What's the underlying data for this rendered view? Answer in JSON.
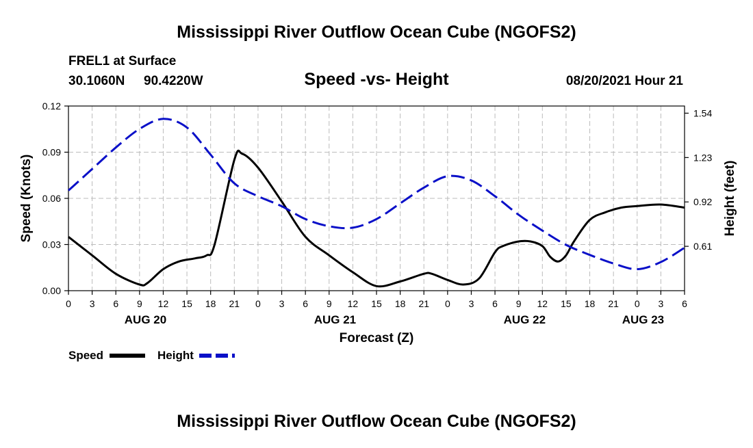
{
  "title": "Mississippi River Outflow Ocean Cube (NGOFS2)",
  "footer_title": "Mississippi River Outflow Ocean Cube (NGOFS2)",
  "station": {
    "name": "FREL1 at Surface",
    "lat": "30.1060N",
    "lon": "90.4220W"
  },
  "subtitle": "Speed -vs- Height",
  "datetime": "08/20/2021 Hour 21",
  "colors": {
    "speed": "#000000",
    "height": "#0a10c8",
    "grid": "#bbbbbb"
  },
  "chart_data": {
    "type": "line",
    "xlabel": "Forecast (Z)",
    "x_range": [
      0,
      78
    ],
    "x_ticks": [
      0,
      3,
      6,
      9,
      12,
      15,
      18,
      21,
      24,
      27,
      30,
      33,
      36,
      39,
      42,
      45,
      48,
      51,
      54,
      57,
      60,
      63,
      66,
      69,
      72,
      75,
      78
    ],
    "x_tick_labels": [
      "0",
      "3",
      "6",
      "9",
      "12",
      "15",
      "18",
      "21",
      "0",
      "3",
      "6",
      "9",
      "12",
      "15",
      "18",
      "21",
      "0",
      "3",
      "6",
      "9",
      "12",
      "15",
      "18",
      "21",
      "0",
      "3",
      "6"
    ],
    "date_labels": [
      {
        "text": "AUG 20",
        "at": 9.75
      },
      {
        "text": "AUG 21",
        "at": 33.75
      },
      {
        "text": "AUG 22",
        "at": 57.75
      },
      {
        "text": "AUG 23",
        "at": 72.75
      }
    ],
    "y_left": {
      "label": "Speed (Knots)",
      "range": [
        0,
        0.12
      ],
      "ticks": [
        0,
        0.03,
        0.06,
        0.09,
        0.12
      ],
      "tick_labels": [
        "0.00",
        "0.03",
        "0.06",
        "0.09",
        "0.12"
      ]
    },
    "y_right": {
      "label": "Height (feet)",
      "range": [
        0.3,
        1.59
      ],
      "ticks": [
        0.61,
        0.92,
        1.23,
        1.54
      ],
      "tick_labels": [
        "0.61",
        "0.92",
        "1.23",
        "1.54"
      ]
    },
    "grid": true,
    "legend": {
      "position": "bottom-left",
      "speed_label": "Speed",
      "height_label": "Height"
    },
    "series": [
      {
        "name": "Speed",
        "axis": "left",
        "style": "solid",
        "x": [
          0,
          3,
          6,
          9,
          10,
          12,
          14,
          16,
          17.5,
          18.5,
          21,
          22,
          24,
          27,
          30,
          33,
          36,
          39,
          42,
          45,
          46,
          48,
          50,
          52,
          54,
          55,
          57,
          58.5,
          60,
          61,
          62,
          63,
          64,
          66,
          68,
          70,
          72,
          75,
          78
        ],
        "y": [
          0.035,
          0.023,
          0.011,
          0.004,
          0.005,
          0.014,
          0.019,
          0.021,
          0.023,
          0.03,
          0.085,
          0.089,
          0.08,
          0.058,
          0.035,
          0.023,
          0.012,
          0.003,
          0.006,
          0.011,
          0.011,
          0.007,
          0.004,
          0.008,
          0.025,
          0.029,
          0.032,
          0.032,
          0.029,
          0.022,
          0.019,
          0.023,
          0.032,
          0.046,
          0.051,
          0.054,
          0.055,
          0.056,
          0.054
        ]
      },
      {
        "name": "Height",
        "axis": "right",
        "style": "dashed",
        "x": [
          0,
          3,
          6,
          9,
          12,
          15,
          18,
          21,
          24,
          27,
          30,
          33,
          36,
          39,
          42,
          45,
          48,
          51,
          54,
          57,
          60,
          63,
          66,
          69,
          72,
          75,
          78
        ],
        "y": [
          1.0,
          1.15,
          1.3,
          1.43,
          1.5,
          1.44,
          1.25,
          1.05,
          0.96,
          0.89,
          0.8,
          0.75,
          0.74,
          0.8,
          0.91,
          1.02,
          1.1,
          1.07,
          0.96,
          0.83,
          0.72,
          0.62,
          0.55,
          0.49,
          0.45,
          0.5,
          0.6
        ]
      }
    ]
  }
}
